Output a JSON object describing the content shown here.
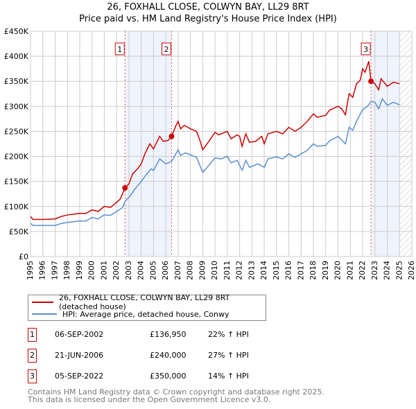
{
  "title": "26, FOXHALL CLOSE, COLWYN BAY, LL29 8RT",
  "subtitle": "Price paid vs. HM Land Registry's House Price Index (HPI)",
  "chart_data": {
    "type": "line",
    "title": "26, FOXHALL CLOSE, COLWYN BAY, LL29 8RT — Price paid vs. HM Land Registry's House Price Index (HPI)",
    "xlim": [
      1995,
      2026
    ],
    "ylim": [
      0,
      450000
    ],
    "x_ticks": [
      "1995",
      "1996",
      "1997",
      "1998",
      "1999",
      "2000",
      "2001",
      "2002",
      "2003",
      "2004",
      "2005",
      "2006",
      "2007",
      "2008",
      "2009",
      "2010",
      "2011",
      "2012",
      "2013",
      "2014",
      "2015",
      "2016",
      "2017",
      "2018",
      "2019",
      "2020",
      "2021",
      "2022",
      "2023",
      "2024",
      "2025",
      "2026"
    ],
    "y_ticks": [
      {
        "v": 0,
        "l": "£0"
      },
      {
        "v": 50000,
        "l": "£50K"
      },
      {
        "v": 100000,
        "l": "£100K"
      },
      {
        "v": 150000,
        "l": "£150K"
      },
      {
        "v": 200000,
        "l": "£200K"
      },
      {
        "v": 250000,
        "l": "£250K"
      },
      {
        "v": 300000,
        "l": "£300K"
      },
      {
        "v": 350000,
        "l": "£350K"
      },
      {
        "v": 400000,
        "l": "£400K"
      },
      {
        "v": 450000,
        "l": "£450K"
      }
    ],
    "grid": true,
    "series": [
      {
        "name": "26, FOXHALL CLOSE, COLWYN BAY, LL29 8RT (detached house)",
        "color": "#cc0000",
        "points": [
          [
            1995,
            80
          ],
          [
            1995.2,
            74
          ],
          [
            1996,
            74
          ],
          [
            1997,
            75
          ],
          [
            1997.5,
            80
          ],
          [
            1998,
            83
          ],
          [
            1999,
            86
          ],
          [
            1999.5,
            86
          ],
          [
            2000,
            93
          ],
          [
            2000.5,
            90
          ],
          [
            2001,
            100
          ],
          [
            2001.5,
            98
          ],
          [
            2002,
            108
          ],
          [
            2002.3,
            115
          ],
          [
            2002.68,
            137
          ],
          [
            2003,
            145
          ],
          [
            2003.3,
            165
          ],
          [
            2003.7,
            175
          ],
          [
            2004,
            185
          ],
          [
            2004.3,
            205
          ],
          [
            2004.7,
            225
          ],
          [
            2005,
            215
          ],
          [
            2005.5,
            240
          ],
          [
            2005.8,
            230
          ],
          [
            2006.2,
            232
          ],
          [
            2006.47,
            240
          ],
          [
            2006.8,
            260
          ],
          [
            2007,
            270
          ],
          [
            2007.2,
            255
          ],
          [
            2007.5,
            262
          ],
          [
            2008,
            255
          ],
          [
            2008.5,
            250
          ],
          [
            2008.8,
            230
          ],
          [
            2009,
            213
          ],
          [
            2009.5,
            230
          ],
          [
            2010,
            248
          ],
          [
            2010.3,
            243
          ],
          [
            2011,
            250
          ],
          [
            2011.3,
            235
          ],
          [
            2011.8,
            243
          ],
          [
            2012,
            240
          ],
          [
            2012.2,
            220
          ],
          [
            2012.5,
            245
          ],
          [
            2012.8,
            228
          ],
          [
            2013.3,
            230
          ],
          [
            2013.8,
            240
          ],
          [
            2014,
            225
          ],
          [
            2014.3,
            245
          ],
          [
            2015,
            250
          ],
          [
            2015.5,
            245
          ],
          [
            2016,
            258
          ],
          [
            2016.5,
            250
          ],
          [
            2017,
            258
          ],
          [
            2017.5,
            270
          ],
          [
            2018,
            285
          ],
          [
            2018.3,
            278
          ],
          [
            2019,
            282
          ],
          [
            2019.3,
            292
          ],
          [
            2020,
            300
          ],
          [
            2020.3,
            295
          ],
          [
            2020.6,
            283
          ],
          [
            2020.9,
            325
          ],
          [
            2021.2,
            318
          ],
          [
            2021.5,
            345
          ],
          [
            2021.8,
            352
          ],
          [
            2022,
            375
          ],
          [
            2022.2,
            368
          ],
          [
            2022.5,
            390
          ],
          [
            2022.68,
            350
          ],
          [
            2023,
            345
          ],
          [
            2023.3,
            333
          ],
          [
            2023.5,
            355
          ],
          [
            2024,
            340
          ],
          [
            2024.5,
            348
          ],
          [
            2025,
            345
          ]
        ]
      },
      {
        "name": "HPI: Average price, detached house, Conwy",
        "color": "#5b8fd0",
        "points": [
          [
            1995,
            66
          ],
          [
            1995.2,
            62
          ],
          [
            1996,
            62
          ],
          [
            1997,
            62
          ],
          [
            1997.5,
            66
          ],
          [
            1998,
            68
          ],
          [
            1999,
            71
          ],
          [
            1999.5,
            71
          ],
          [
            2000,
            78
          ],
          [
            2000.5,
            75
          ],
          [
            2001,
            83
          ],
          [
            2001.5,
            82
          ],
          [
            2002,
            90
          ],
          [
            2002.5,
            98
          ],
          [
            2002.68,
            110
          ],
          [
            2003,
            118
          ],
          [
            2003.5,
            135
          ],
          [
            2004,
            150
          ],
          [
            2004.3,
            160
          ],
          [
            2004.8,
            175
          ],
          [
            2005,
            172
          ],
          [
            2005.5,
            195
          ],
          [
            2006,
            185
          ],
          [
            2006.47,
            190
          ],
          [
            2007,
            213
          ],
          [
            2007.2,
            202
          ],
          [
            2007.6,
            207
          ],
          [
            2008,
            203
          ],
          [
            2008.5,
            198
          ],
          [
            2009,
            168
          ],
          [
            2009.5,
            182
          ],
          [
            2010,
            197
          ],
          [
            2010.5,
            195
          ],
          [
            2011,
            200
          ],
          [
            2011.3,
            187
          ],
          [
            2011.8,
            192
          ],
          [
            2012.2,
            172
          ],
          [
            2012.5,
            192
          ],
          [
            2012.8,
            178
          ],
          [
            2013.5,
            185
          ],
          [
            2014,
            178
          ],
          [
            2014.3,
            195
          ],
          [
            2015,
            199
          ],
          [
            2015.5,
            195
          ],
          [
            2016,
            205
          ],
          [
            2016.5,
            198
          ],
          [
            2017,
            205
          ],
          [
            2017.5,
            212
          ],
          [
            2018,
            225
          ],
          [
            2018.3,
            220
          ],
          [
            2019,
            222
          ],
          [
            2019.3,
            231
          ],
          [
            2020,
            240
          ],
          [
            2020.6,
            225
          ],
          [
            2020.9,
            258
          ],
          [
            2021.2,
            252
          ],
          [
            2021.5,
            270
          ],
          [
            2022,
            293
          ],
          [
            2022.4,
            300
          ],
          [
            2022.68,
            310
          ],
          [
            2023,
            308
          ],
          [
            2023.3,
            295
          ],
          [
            2023.6,
            315
          ],
          [
            2024,
            302
          ],
          [
            2024.5,
            308
          ],
          [
            2025,
            303
          ]
        ]
      }
    ],
    "sales": [
      {
        "label": "1",
        "x": 2002.68,
        "y": 136950
      },
      {
        "label": "2",
        "x": 2006.47,
        "y": 240000
      },
      {
        "label": "3",
        "x": 2022.68,
        "y": 350000
      }
    ],
    "shaded": [
      [
        2002.68,
        2006.47
      ],
      [
        2022.68,
        2025.0
      ]
    ],
    "hatched_from": 2025.0
  },
  "legend": [
    {
      "label": "26, FOXHALL CLOSE, COLWYN BAY, LL29 8RT (detached house)",
      "color": "#cc0000"
    },
    {
      "label": "HPI: Average price, detached house, Conwy",
      "color": "#5b8fd0"
    }
  ],
  "transactions": [
    {
      "num": "1",
      "date": "06-SEP-2002",
      "price": "£136,950",
      "hpi": "22% ↑ HPI"
    },
    {
      "num": "2",
      "date": "21-JUN-2006",
      "price": "£240,000",
      "hpi": "27% ↑ HPI"
    },
    {
      "num": "3",
      "date": "05-SEP-2022",
      "price": "£350,000",
      "hpi": "14% ↑ HPI"
    }
  ],
  "footer": [
    "Contains HM Land Registry data © Crown copyright and database right 2025.",
    "This data is licensed under the Open Government Licence v3.0."
  ]
}
